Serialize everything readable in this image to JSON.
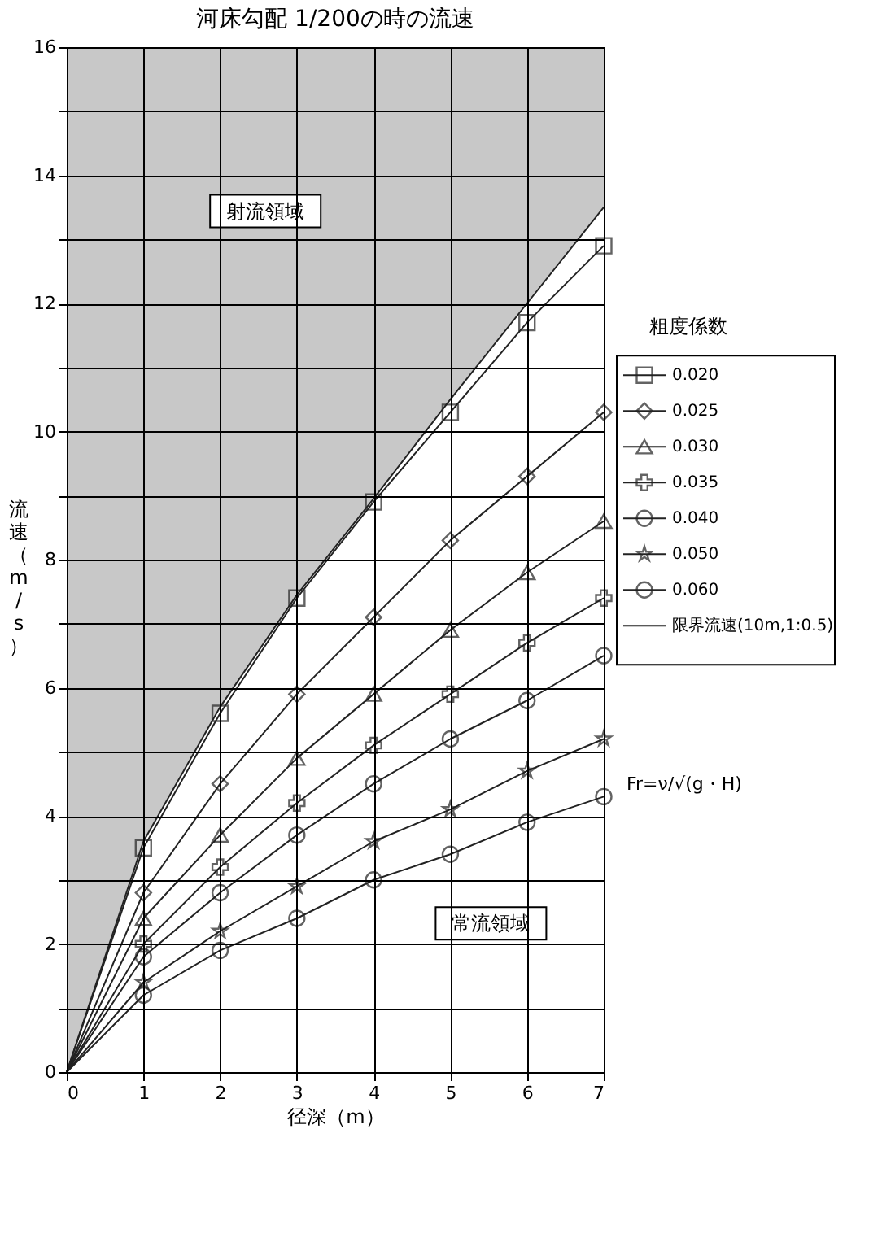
{
  "chart_data": {
    "type": "line",
    "title": "河床勾配 1/200の時の流速",
    "xlabel": "径深（m）",
    "ylabel": "流速（m/s）",
    "legend_title": "粗度係数",
    "x": [
      0,
      1,
      2,
      3,
      4,
      5,
      6,
      7
    ],
    "xlim": [
      0,
      7
    ],
    "xticks": [
      0,
      1,
      2,
      3,
      4,
      5,
      6,
      7
    ],
    "ylim": [
      0,
      16
    ],
    "yticks": [
      0,
      {
        "value": 1,
        "label": null
      },
      2,
      {
        "value": 3,
        "label": null
      },
      4,
      {
        "value": 5,
        "label": null
      },
      6,
      {
        "value": 7,
        "label": null
      },
      8,
      {
        "value": 9,
        "label": null
      },
      10,
      {
        "value": 11,
        "label": null
      },
      12,
      {
        "value": 13,
        "label": null
      },
      14,
      {
        "value": 15,
        "label": null
      },
      16
    ],
    "grid": true,
    "legend": "right",
    "series": [
      {
        "name": "0.020",
        "color": "#222222",
        "marker": "square",
        "values": [
          0,
          3.5,
          5.6,
          7.4,
          8.9,
          10.3,
          11.7,
          12.9
        ]
      },
      {
        "name": "0.025",
        "color": "#222222",
        "marker": "diamond",
        "values": [
          0,
          2.8,
          4.5,
          5.9,
          7.1,
          8.3,
          9.3,
          10.3
        ]
      },
      {
        "name": "0.030",
        "color": "#222222",
        "marker": "triangle",
        "values": [
          0,
          2.4,
          3.7,
          4.9,
          5.9,
          6.9,
          7.8,
          8.6
        ]
      },
      {
        "name": "0.035",
        "color": "#222222",
        "marker": "cross",
        "values": [
          0,
          2.0,
          3.2,
          4.2,
          5.1,
          5.9,
          6.7,
          7.4
        ]
      },
      {
        "name": "0.040",
        "color": "#222222",
        "marker": "circle",
        "values": [
          0,
          1.8,
          2.8,
          3.7,
          4.5,
          5.2,
          5.8,
          6.5
        ]
      },
      {
        "name": "0.050",
        "color": "#222222",
        "marker": "star",
        "values": [
          0,
          1.4,
          2.2,
          2.9,
          3.6,
          4.1,
          4.7,
          5.2
        ]
      },
      {
        "name": "0.060",
        "color": "#222222",
        "marker": "circle",
        "values": [
          0,
          1.2,
          1.9,
          2.4,
          3.0,
          3.4,
          3.9,
          4.3
        ]
      },
      {
        "name": "限界流速(10m,1:0.5)",
        "color": "#222222",
        "marker": "none",
        "values": [
          0,
          3.6,
          5.7,
          7.45,
          8.95,
          10.5,
          12.0,
          13.5
        ],
        "lower": [
          0,
          3.6,
          5.7,
          7.45,
          8.95,
          10.5,
          12.0,
          13.5
        ],
        "upper": [
          16,
          16,
          16,
          16,
          16,
          16,
          16,
          16
        ]
      }
    ],
    "annotations": [
      "射流領域",
      "常流領域",
      "Fr=ν/√(g・H)"
    ]
  }
}
